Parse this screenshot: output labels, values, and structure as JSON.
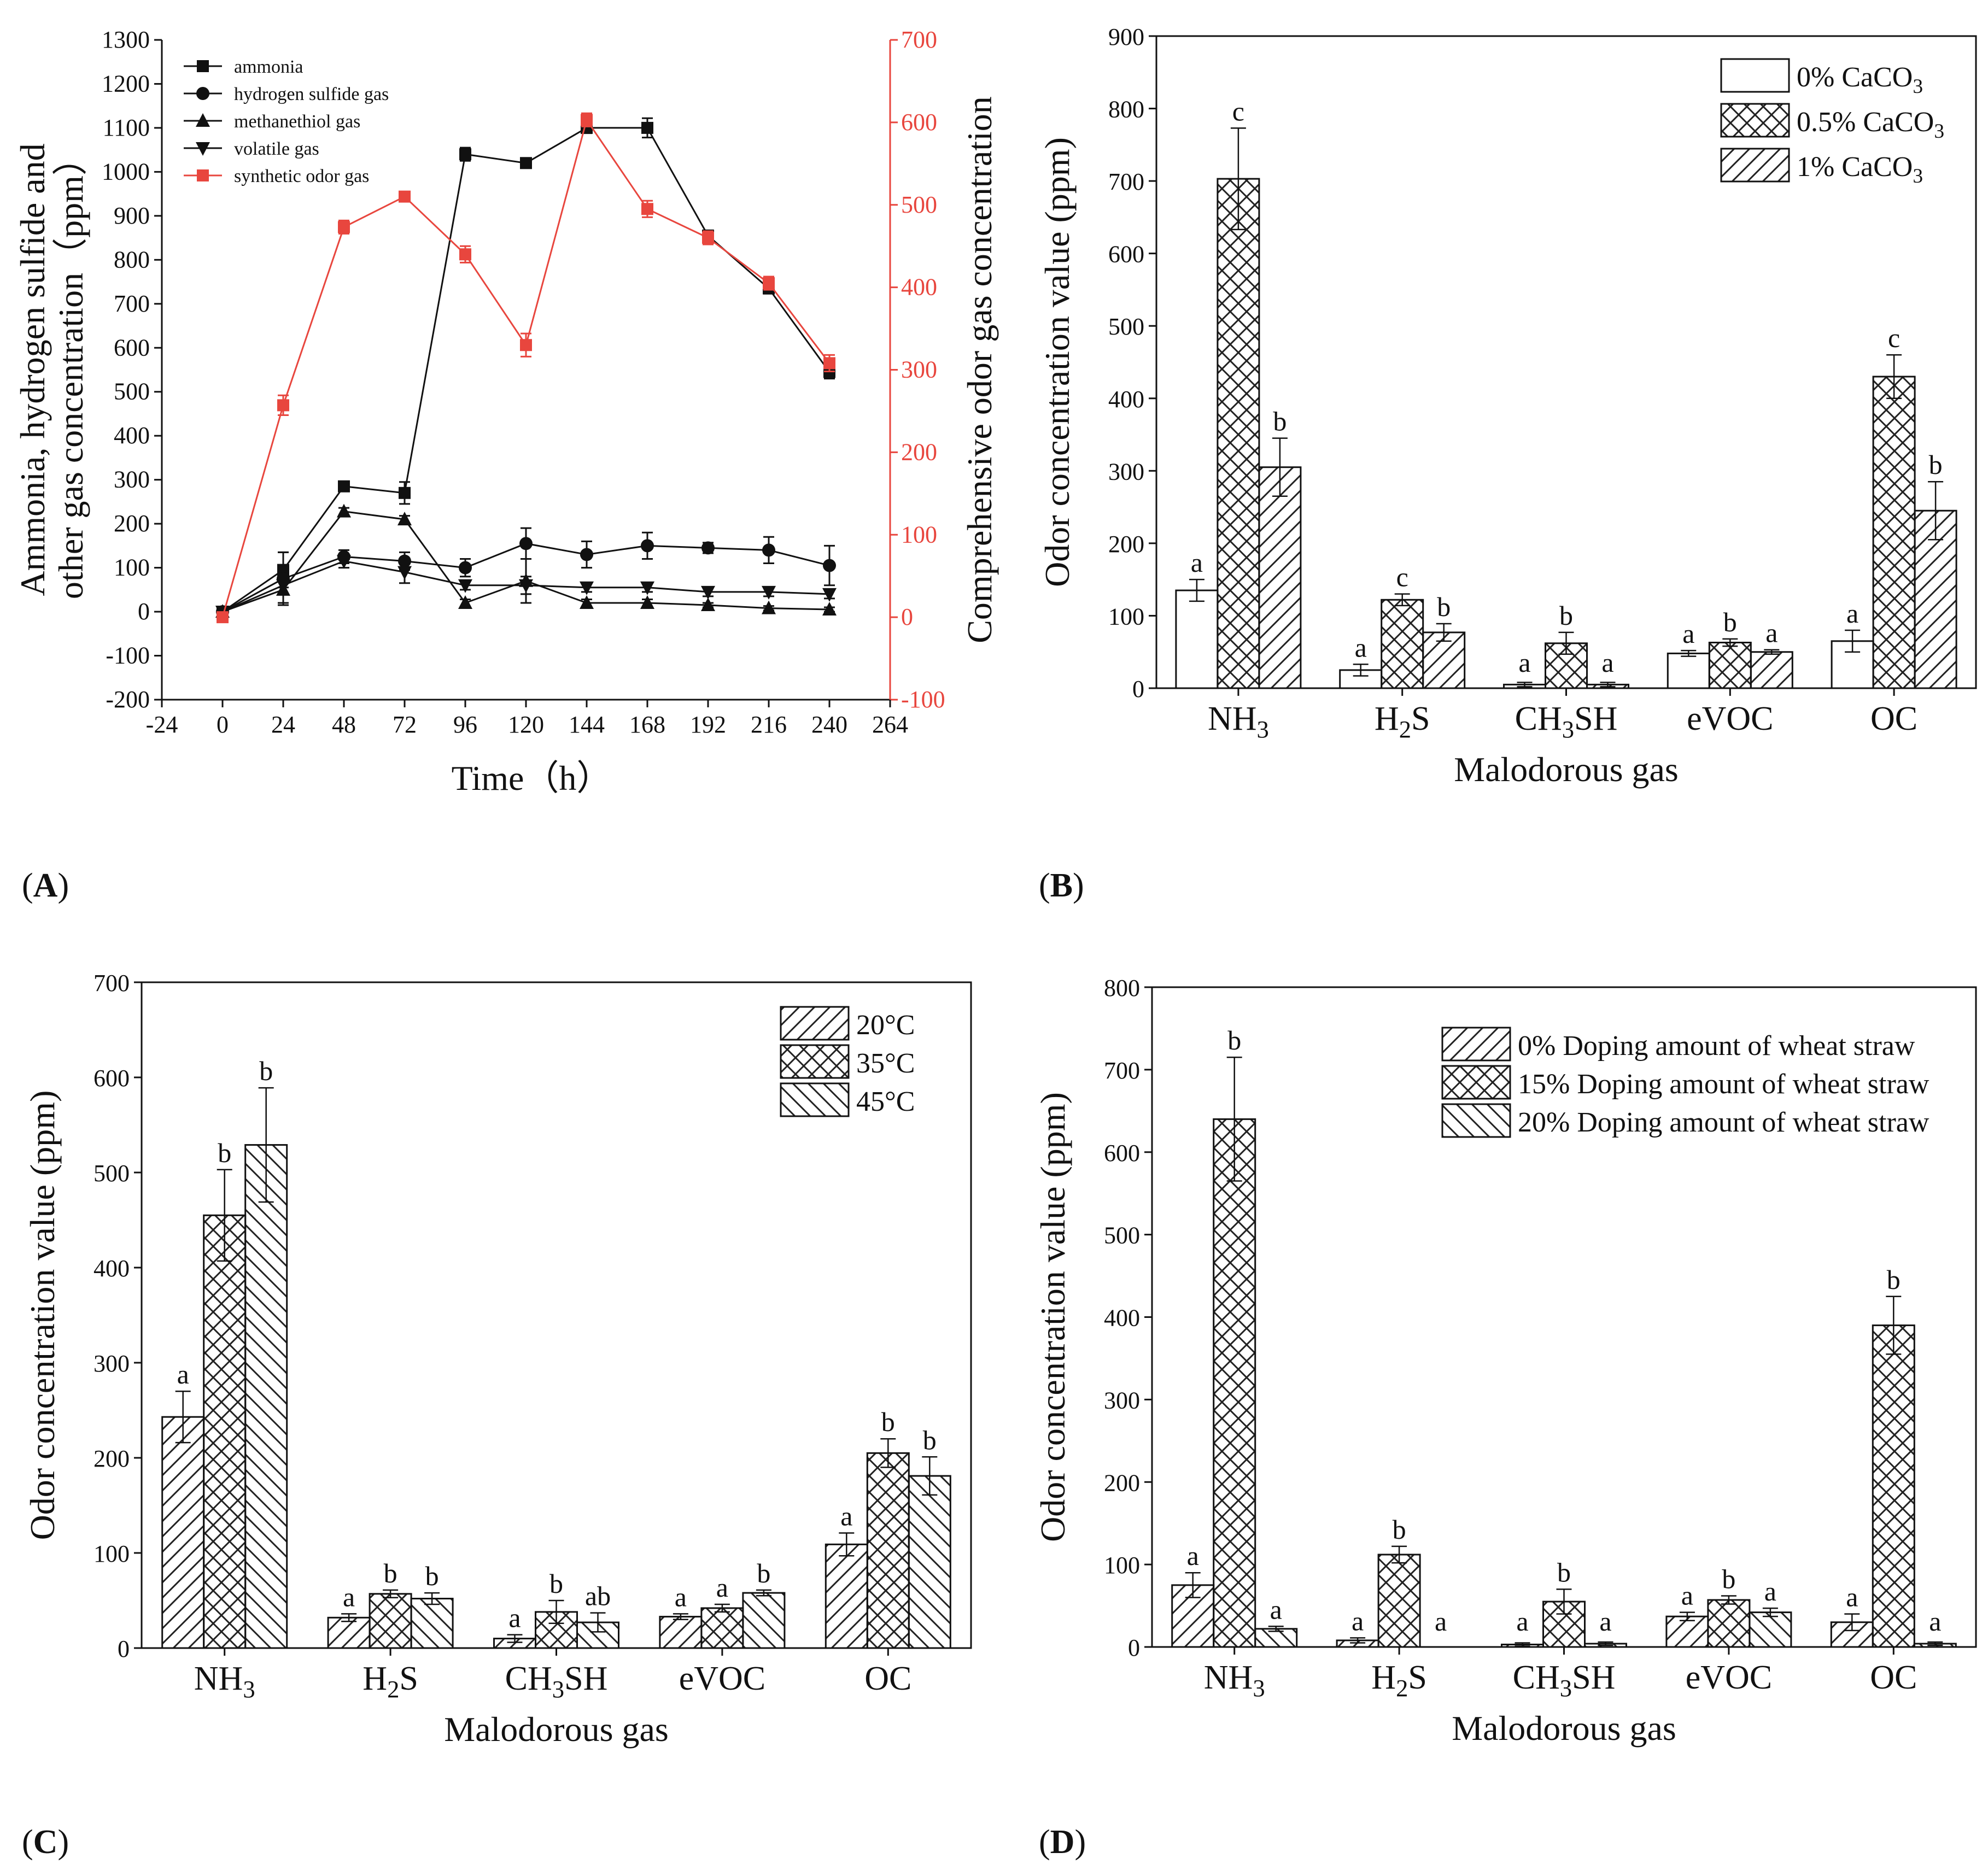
{
  "chart_data": [
    {
      "id": "A",
      "panel_label_open": "(",
      "panel_label": "A",
      "panel_label_close": ")",
      "type": "line",
      "xlabel": "Time（h）",
      "ylabel_line1": "Ammonia, hydrogen sulfide and",
      "ylabel_line2": "other gas concentration（ppm）",
      "y2label": "Comprehensive odor gas concentration",
      "xlim": [
        -24,
        264
      ],
      "xticks": [
        -24,
        0,
        24,
        48,
        72,
        96,
        120,
        144,
        168,
        192,
        216,
        240,
        264
      ],
      "ylim": [
        -200,
        1300
      ],
      "yticks": [
        -200,
        -100,
        0,
        100,
        200,
        300,
        400,
        500,
        600,
        700,
        800,
        900,
        1000,
        1100,
        1200,
        1300
      ],
      "y2lim": [
        -100,
        700
      ],
      "y2ticks": [
        -100,
        0,
        100,
        200,
        300,
        400,
        500,
        600,
        700
      ],
      "series": [
        {
          "name": "ammonia",
          "axis": "left",
          "marker": "square",
          "color": "#111111",
          "x": [
            0,
            24,
            48,
            72,
            96,
            120,
            144,
            168,
            192,
            216,
            240
          ],
          "y": [
            0,
            95,
            285,
            270,
            1040,
            1020,
            1100,
            1100,
            855,
            735,
            545
          ],
          "err": [
            8,
            40,
            8,
            25,
            15,
            8,
            12,
            22,
            12,
            12,
            15
          ]
        },
        {
          "name": "hydrogen sulfide gas",
          "axis": "left",
          "marker": "circle",
          "color": "#111111",
          "x": [
            0,
            24,
            48,
            72,
            96,
            120,
            144,
            168,
            192,
            216,
            240
          ],
          "y": [
            0,
            75,
            125,
            115,
            100,
            155,
            130,
            150,
            145,
            140,
            105
          ],
          "err": [
            5,
            60,
            15,
            20,
            20,
            35,
            30,
            30,
            12,
            30,
            45
          ]
        },
        {
          "name": "methanethiol gas",
          "axis": "left",
          "marker": "triangle-up",
          "color": "#111111",
          "x": [
            0,
            24,
            48,
            72,
            96,
            120,
            144,
            168,
            192,
            216,
            240
          ],
          "y": [
            0,
            50,
            228,
            210,
            20,
            70,
            20,
            20,
            15,
            8,
            5
          ],
          "err": [
            5,
            30,
            8,
            8,
            8,
            50,
            8,
            8,
            5,
            5,
            5
          ]
        },
        {
          "name": "volatile gas",
          "axis": "left",
          "marker": "triangle-down",
          "color": "#111111",
          "x": [
            0,
            24,
            48,
            72,
            96,
            120,
            144,
            168,
            192,
            216,
            240
          ],
          "y": [
            0,
            60,
            115,
            90,
            60,
            60,
            55,
            55,
            45,
            45,
            40
          ],
          "err": [
            5,
            20,
            15,
            25,
            10,
            20,
            10,
            10,
            10,
            10,
            10
          ]
        },
        {
          "name": "synthetic odor gas",
          "axis": "right",
          "marker": "square",
          "color": "#e8463e",
          "x": [
            0,
            24,
            48,
            72,
            96,
            120,
            144,
            168,
            192,
            216,
            240
          ],
          "y": [
            0,
            257,
            473,
            510,
            440,
            330,
            603,
            495,
            460,
            405,
            308
          ],
          "err": [
            5,
            12,
            8,
            6,
            10,
            14,
            8,
            10,
            8,
            8,
            10
          ]
        }
      ]
    },
    {
      "id": "B",
      "panel_label_open": "(",
      "panel_label": "B",
      "panel_label_close": ")",
      "type": "bar",
      "xlabel": "Malodorous gas",
      "ylabel": "Odor concentration value (ppm)",
      "ylim": [
        0,
        900
      ],
      "yticks": [
        0,
        100,
        200,
        300,
        400,
        500,
        600,
        700,
        800,
        900
      ],
      "categories": [
        {
          "main": "NH",
          "sub": "3",
          "tail": ""
        },
        {
          "main": "H",
          "sub": "2",
          "tail": "S"
        },
        {
          "main": "CH",
          "sub": "3",
          "tail": "SH"
        },
        {
          "main": "eVOC",
          "sub": "",
          "tail": ""
        },
        {
          "main": "OC",
          "sub": "",
          "tail": ""
        }
      ],
      "legend_position": "top-right",
      "series": [
        {
          "name_main": "0% CaCO",
          "name_sub": "3",
          "pattern": "none",
          "values": [
            135,
            25,
            5,
            48,
            65
          ],
          "err": [
            15,
            8,
            3,
            4,
            15
          ],
          "letters": [
            "a",
            "a",
            "a",
            "a",
            "a"
          ]
        },
        {
          "name_main": "0.5% CaCO",
          "name_sub": "3",
          "pattern": "cross",
          "values": [
            703,
            122,
            62,
            63,
            430
          ],
          "err": [
            70,
            8,
            15,
            5,
            30
          ],
          "letters": [
            "c",
            "c",
            "b",
            "b",
            "c"
          ]
        },
        {
          "name_main": "1% CaCO",
          "name_sub": "3",
          "pattern": "diag",
          "values": [
            305,
            77,
            5,
            50,
            245
          ],
          "err": [
            40,
            12,
            3,
            3,
            40
          ],
          "letters": [
            "b",
            "b",
            "a",
            "a",
            "b"
          ]
        }
      ]
    },
    {
      "id": "C",
      "panel_label_open": "(",
      "panel_label": "C",
      "panel_label_close": ")",
      "type": "bar",
      "xlabel": "Malodorous gas",
      "ylabel": "Odor concentration value (ppm)",
      "ylim": [
        0,
        700
      ],
      "yticks": [
        0,
        100,
        200,
        300,
        400,
        500,
        600,
        700
      ],
      "categories": [
        {
          "main": "NH",
          "sub": "3",
          "tail": ""
        },
        {
          "main": "H",
          "sub": "2",
          "tail": "S"
        },
        {
          "main": "CH",
          "sub": "3",
          "tail": "SH"
        },
        {
          "main": "eVOC",
          "sub": "",
          "tail": ""
        },
        {
          "main": "OC",
          "sub": "",
          "tail": ""
        }
      ],
      "legend_position": "top-right",
      "series": [
        {
          "name_main": "20°C",
          "name_sub": "",
          "pattern": "diag",
          "values": [
            243,
            32,
            10,
            33,
            109
          ],
          "err": [
            27,
            4,
            4,
            3,
            12
          ],
          "letters": [
            "a",
            "a",
            "a",
            "a",
            "a"
          ]
        },
        {
          "name_main": "35°C",
          "name_sub": "",
          "pattern": "cross",
          "values": [
            455,
            57,
            38,
            42,
            205
          ],
          "err": [
            48,
            4,
            12,
            4,
            15
          ],
          "letters": [
            "b",
            "b",
            "b",
            "a",
            "b"
          ]
        },
        {
          "name_main": "45°C",
          "name_sub": "",
          "pattern": "backdiag",
          "values": [
            529,
            52,
            27,
            58,
            181
          ],
          "err": [
            60,
            6,
            10,
            3,
            20
          ],
          "letters": [
            "b",
            "b",
            "ab",
            "b",
            "b"
          ]
        }
      ]
    },
    {
      "id": "D",
      "panel_label_open": "(",
      "panel_label": "D",
      "panel_label_close": ")",
      "type": "bar",
      "xlabel": "Malodorous gas",
      "ylabel": "Odor concentration value (ppm)",
      "ylim": [
        0,
        800
      ],
      "yticks": [
        0,
        100,
        200,
        300,
        400,
        500,
        600,
        700,
        800
      ],
      "categories": [
        {
          "main": "NH",
          "sub": "3",
          "tail": ""
        },
        {
          "main": "H",
          "sub": "2",
          "tail": "S"
        },
        {
          "main": "CH",
          "sub": "3",
          "tail": "SH"
        },
        {
          "main": "eVOC",
          "sub": "",
          "tail": ""
        },
        {
          "main": "OC",
          "sub": "",
          "tail": ""
        }
      ],
      "legend_position": "top-right",
      "series": [
        {
          "name_main": "0% Doping amount of wheat straw",
          "name_sub": "",
          "pattern": "diag",
          "values": [
            75,
            8,
            3,
            37,
            30
          ],
          "err": [
            15,
            3,
            2,
            5,
            10
          ],
          "letters": [
            "a",
            "a",
            "a",
            "a",
            "a"
          ]
        },
        {
          "name_main": "15% Doping amount of wheat straw",
          "name_sub": "",
          "pattern": "cross",
          "values": [
            640,
            112,
            55,
            57,
            390
          ],
          "err": [
            75,
            10,
            15,
            5,
            35
          ],
          "letters": [
            "b",
            "b",
            "b",
            "b",
            "b"
          ]
        },
        {
          "name_main": "20% Doping amount of wheat straw",
          "name_sub": "",
          "pattern": "backdiag",
          "values": [
            22,
            0,
            4,
            42,
            4
          ],
          "err": [
            3,
            0,
            2,
            5,
            2
          ],
          "letters": [
            "a",
            "a",
            "a",
            "a",
            "a"
          ]
        }
      ]
    }
  ]
}
